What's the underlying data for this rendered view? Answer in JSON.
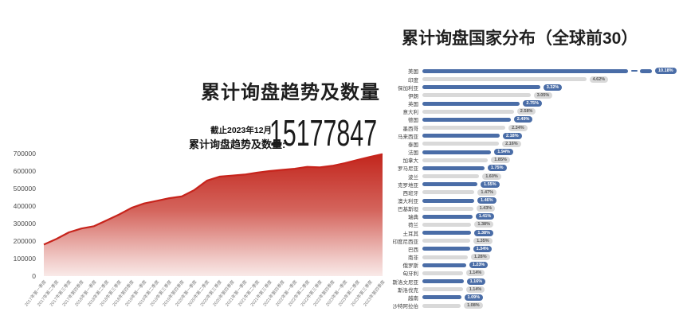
{
  "left_chart": {
    "title": "累计询盘趋势及数量",
    "as_of": "截止2023年12月",
    "total_label": "累计询盘趋势及数量:",
    "total_value": "15177847"
  },
  "right_chart": {
    "title": "累计询盘国家分布（全球前30）"
  },
  "colors": {
    "bar_blue": "#4a6da7",
    "bar_gray": "#d9d9d9",
    "badge_gray_text": "#565656",
    "trend_line_red": "#c7241c",
    "trend_fill_top": "#c2251c",
    "trend_fill_bottom": "#ffffff"
  },
  "chart_data": [
    {
      "type": "area",
      "title": "累计询盘趋势及数量",
      "ylabel": "",
      "xlabel": "",
      "ylim": [
        0,
        700000
      ],
      "yticks": [
        0,
        100000,
        200000,
        300000,
        400000,
        500000,
        600000,
        700000
      ],
      "grid": false,
      "x": [
        "2017年第一季度",
        "2017年第二季度",
        "2017年第三季度",
        "2017年第四季度",
        "2018年第一季度",
        "2018年第二季度",
        "2018年第三季度",
        "2018年第四季度",
        "2019年第一季度",
        "2019年第二季度",
        "2019年第三季度",
        "2019年第四季度",
        "2020年第一季度",
        "2020年第二季度",
        "2020年第三季度",
        "2020年第四季度",
        "2021年第一季度",
        "2021年第二季度",
        "2021年第三季度",
        "2021年第四季度",
        "2022年第一季度",
        "2022年第二季度",
        "2022年第三季度",
        "2022年第四季度",
        "2023年第一季度",
        "2023年第二季度",
        "2023年第三季度",
        "2023年第四季度"
      ],
      "values": [
        180000,
        212000,
        250000,
        272000,
        285000,
        318000,
        352000,
        390000,
        415000,
        430000,
        445000,
        455000,
        492000,
        545000,
        568000,
        574000,
        580000,
        591000,
        600000,
        607000,
        613000,
        624000,
        621000,
        630000,
        645000,
        663000,
        681000,
        697000
      ]
    },
    {
      "type": "bar",
      "orientation": "horizontal",
      "title": "累计询盘国家分布（全球前30）",
      "axis_break_on_first_bar": true,
      "legend": "none",
      "categories": [
        "美国",
        "印度",
        "保加利亚",
        "伊朗",
        "英国",
        "意大利",
        "德国",
        "墨西哥",
        "马来西亚",
        "泰国",
        "法国",
        "加拿大",
        "罗马尼亚",
        "波兰",
        "克罗地亚",
        "西班牙",
        "澳大利亚",
        "巴基斯坦",
        "瑞典",
        "荷兰",
        "土耳其",
        "印度尼西亚",
        "巴西",
        "南非",
        "俄罗斯",
        "匈牙利",
        "斯洛文尼亚",
        "斯洛伐克",
        "越南",
        "沙特阿拉伯"
      ],
      "values": [
        10.18,
        4.62,
        3.32,
        3.05,
        2.75,
        2.58,
        2.49,
        2.34,
        2.18,
        2.16,
        1.94,
        1.85,
        1.75,
        1.6,
        1.55,
        1.47,
        1.46,
        1.43,
        1.41,
        1.38,
        1.38,
        1.35,
        1.34,
        1.28,
        1.23,
        1.14,
        1.16,
        1.14,
        1.09,
        1.08
      ],
      "labels": [
        "10.18%",
        "4.62%",
        "3.32%",
        "3.05%",
        "2.75%",
        "2.58%",
        "2.49%",
        "2.34%",
        "2.18%",
        "2.16%",
        "1.94%",
        "1.85%",
        "1.75%",
        "1.60%",
        "1.55%",
        "1.47%",
        "1.46%",
        "1.43%",
        "1.41%",
        "1.38%",
        "1.38%",
        "1.35%",
        "1.34%",
        "1.28%",
        "1.23%",
        "1.14%",
        "1.16%",
        "1.14%",
        "1.09%",
        "1.08%"
      ]
    }
  ]
}
